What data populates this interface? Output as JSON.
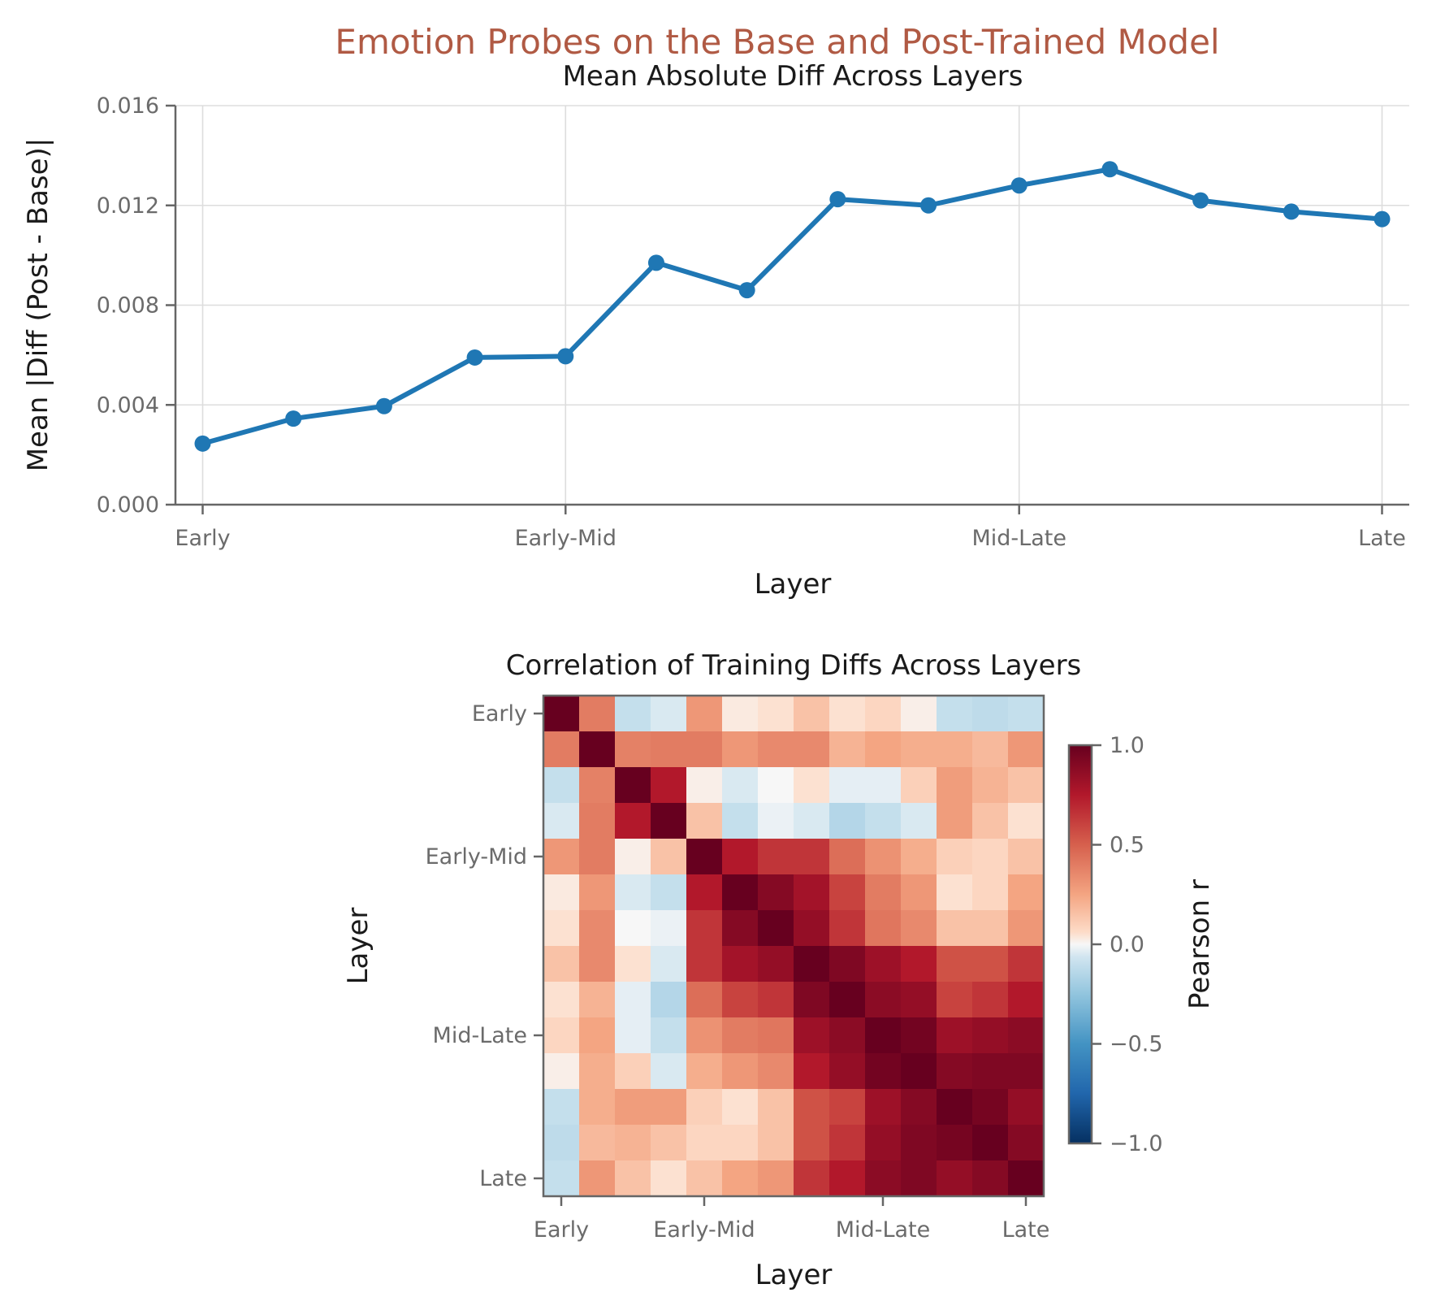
{
  "figure": {
    "suptitle": "Emotion Probes on the Base and Post-Trained Model",
    "suptitle_color": "#b05a44"
  },
  "chart_data": [
    {
      "type": "line",
      "title": "Mean Absolute Diff Across Layers",
      "xlabel": "Layer",
      "ylabel": "Mean |Diff (Post - Base)|",
      "x_tick_labels": [
        {
          "x": 0,
          "label": "Early"
        },
        {
          "x": 4,
          "label": "Early-Mid"
        },
        {
          "x": 9,
          "label": "Mid-Late"
        },
        {
          "x": 13,
          "label": "Late"
        }
      ],
      "yticks": [
        "0.000",
        "0.004",
        "0.008",
        "0.012",
        "0.016"
      ],
      "ylim": [
        0,
        0.016
      ],
      "grid": true,
      "color": "#1f77b4",
      "x": [
        0,
        1,
        2,
        3,
        4,
        5,
        6,
        7,
        8,
        9,
        10,
        11,
        12,
        13
      ],
      "values": [
        0.00245,
        0.00345,
        0.00395,
        0.0059,
        0.00595,
        0.0097,
        0.0086,
        0.01225,
        0.012,
        0.0128,
        0.01345,
        0.0122,
        0.01175,
        0.01145
      ]
    },
    {
      "type": "heatmap",
      "title": "Correlation of Training Diffs Across Layers",
      "xlabel": "Layer",
      "ylabel": "Layer",
      "tick_labels": [
        {
          "index": 0,
          "label": "Early"
        },
        {
          "index": 4,
          "label": "Early-Mid"
        },
        {
          "index": 9,
          "label": "Mid-Late"
        },
        {
          "index": 13,
          "label": "Late"
        }
      ],
      "colormap": "RdBu_r",
      "vmin": -1.0,
      "vmax": 1.0,
      "colorbar": {
        "label": "Pearson r",
        "ticks": [
          "1.0",
          "0.5",
          "0.0",
          "−0.5",
          "−1.0"
        ]
      },
      "matrix": [
        [
          1.0,
          0.4,
          -0.1,
          -0.05,
          0.3,
          0.03,
          0.05,
          0.15,
          0.05,
          0.08,
          0.02,
          -0.1,
          -0.12,
          -0.1
        ],
        [
          0.4,
          1.0,
          0.38,
          0.4,
          0.4,
          0.3,
          0.35,
          0.35,
          0.2,
          0.25,
          0.22,
          0.22,
          0.18,
          0.3
        ],
        [
          -0.1,
          0.38,
          1.0,
          0.75,
          0.02,
          -0.05,
          0.0,
          0.05,
          -0.03,
          -0.03,
          0.1,
          0.28,
          0.2,
          0.15
        ],
        [
          -0.05,
          0.4,
          0.75,
          1.0,
          0.15,
          -0.1,
          -0.02,
          -0.05,
          -0.15,
          -0.1,
          -0.05,
          0.28,
          0.15,
          0.05
        ],
        [
          0.3,
          0.4,
          0.02,
          0.15,
          1.0,
          0.75,
          0.65,
          0.65,
          0.45,
          0.32,
          0.22,
          0.1,
          0.08,
          0.15
        ],
        [
          0.03,
          0.3,
          -0.05,
          -0.1,
          0.75,
          1.0,
          0.9,
          0.8,
          0.6,
          0.4,
          0.3,
          0.05,
          0.08,
          0.25
        ],
        [
          0.05,
          0.35,
          0.0,
          -0.02,
          0.65,
          0.9,
          1.0,
          0.85,
          0.65,
          0.42,
          0.35,
          0.15,
          0.15,
          0.3
        ],
        [
          0.15,
          0.35,
          0.05,
          -0.05,
          0.65,
          0.8,
          0.85,
          1.0,
          0.92,
          0.82,
          0.75,
          0.55,
          0.55,
          0.65
        ],
        [
          0.05,
          0.2,
          -0.03,
          -0.15,
          0.45,
          0.6,
          0.65,
          0.92,
          1.0,
          0.88,
          0.85,
          0.6,
          0.65,
          0.75
        ],
        [
          0.08,
          0.25,
          -0.03,
          -0.1,
          0.32,
          0.4,
          0.42,
          0.82,
          0.88,
          1.0,
          0.96,
          0.82,
          0.85,
          0.88
        ],
        [
          0.02,
          0.22,
          0.1,
          -0.05,
          0.22,
          0.3,
          0.35,
          0.75,
          0.85,
          0.96,
          1.0,
          0.9,
          0.92,
          0.92
        ],
        [
          -0.1,
          0.22,
          0.28,
          0.28,
          0.1,
          0.05,
          0.15,
          0.55,
          0.6,
          0.82,
          0.9,
          1.0,
          0.95,
          0.85
        ],
        [
          -0.12,
          0.18,
          0.2,
          0.15,
          0.08,
          0.08,
          0.15,
          0.55,
          0.65,
          0.85,
          0.92,
          0.95,
          1.0,
          0.9
        ],
        [
          -0.1,
          0.3,
          0.15,
          0.05,
          0.15,
          0.25,
          0.3,
          0.65,
          0.75,
          0.88,
          0.92,
          0.85,
          0.9,
          1.0
        ]
      ]
    }
  ]
}
